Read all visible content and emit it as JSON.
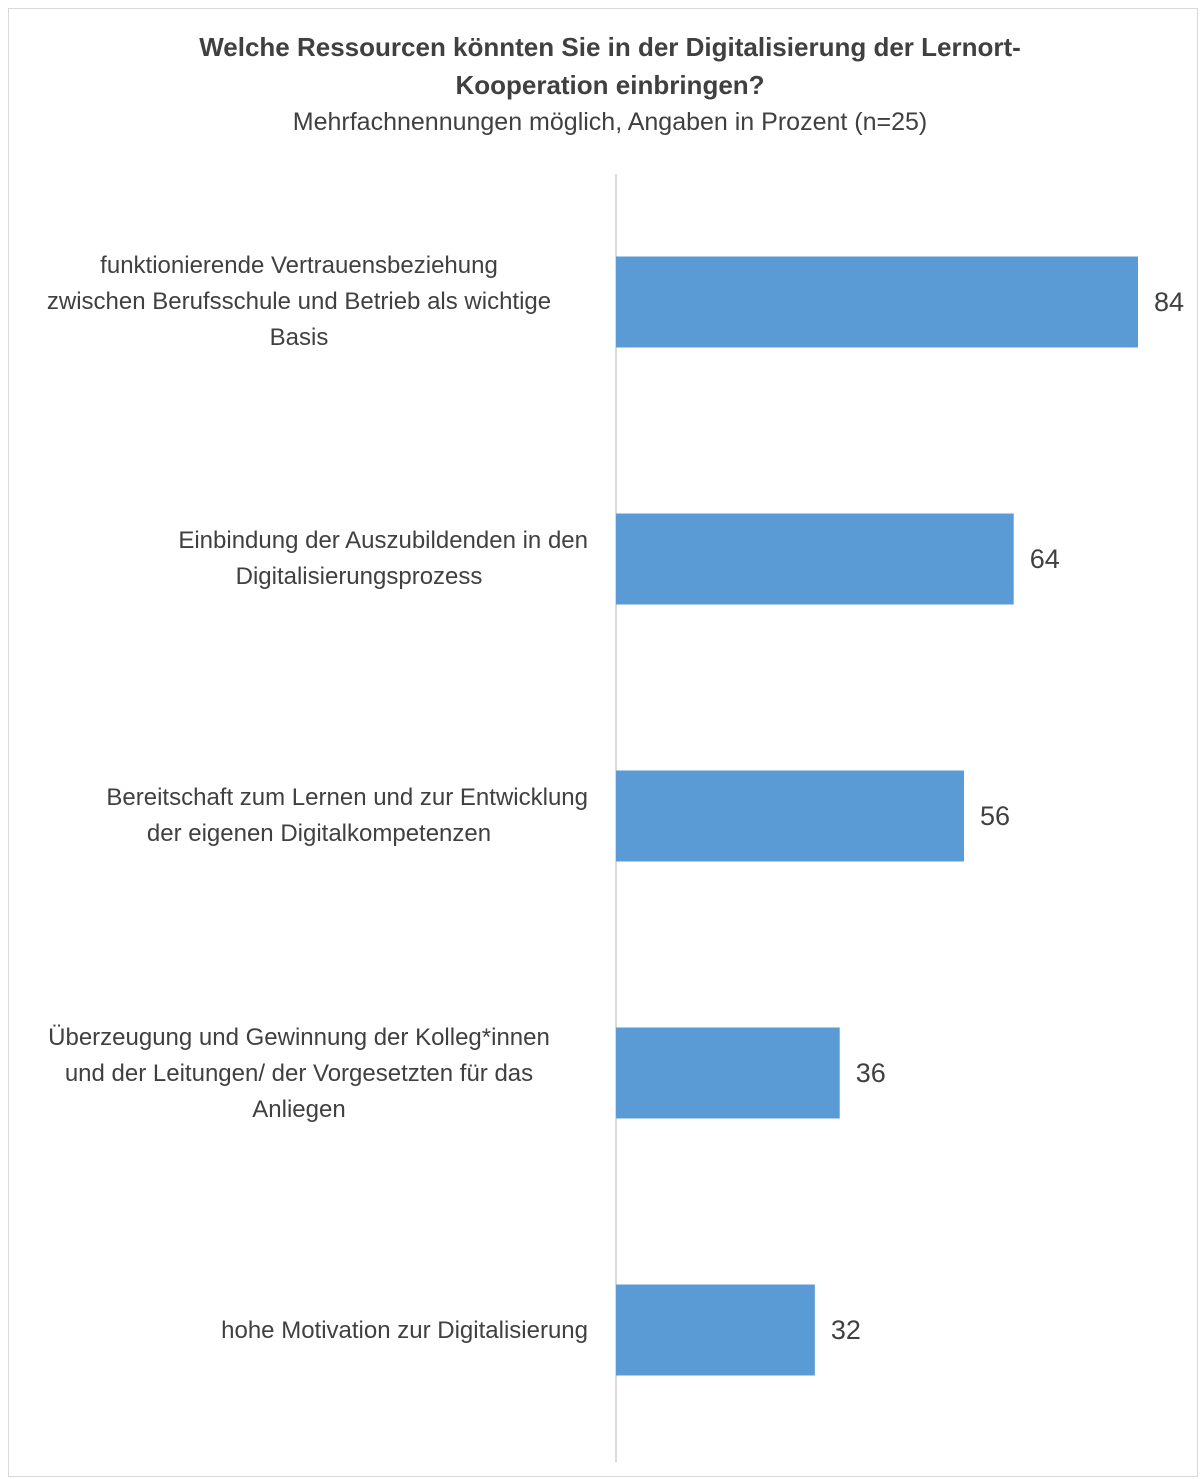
{
  "chart_data": {
    "type": "bar",
    "orientation": "horizontal",
    "title_lines": [
      "Welche Ressourcen könnten Sie in der Digitalisierung der Lernort-",
      "Kooperation einbringen?"
    ],
    "subtitle": "Mehrfachnennungen möglich, Angaben in Prozent (n=25)",
    "categories": [
      [
        "funktionierende Vertrauensbeziehung",
        "zwischen Berufsschule und Betrieb als wichtige",
        "Basis"
      ],
      [
        "Einbindung der Auszubildenden in den",
        "Digitalisierungsprozess"
      ],
      [
        "Bereitschaft zum Lernen und zur Entwicklung",
        "der eigenen Digitalkompetenzen"
      ],
      [
        "Überzeugung und Gewinnung der Kolleg*innen",
        "und der Leitungen/ der Vorgesetzten für das",
        "Anliegen"
      ],
      [
        "hohe Motivation zur Digitalisierung"
      ]
    ],
    "values": [
      84,
      64,
      56,
      36,
      32
    ],
    "value_labels": [
      "84",
      "64",
      "56",
      "36",
      "32"
    ],
    "xlim": [
      0,
      92
    ],
    "grid": false,
    "legend": "none",
    "bar_color": "#5b9bd5",
    "axis_color": "#d9d9d9"
  }
}
